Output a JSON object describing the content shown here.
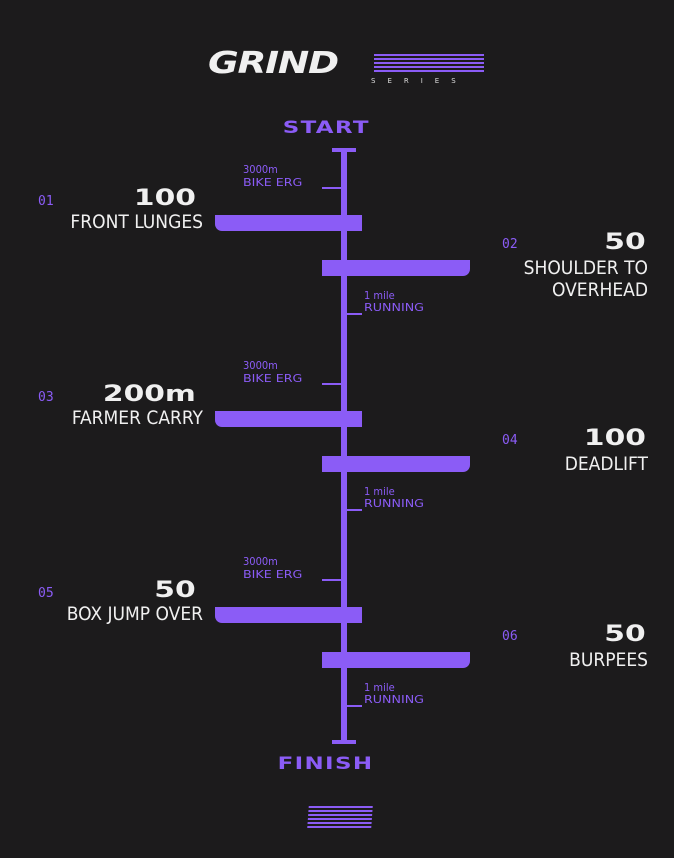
{
  "logo": {
    "word": "GRIND",
    "sub": "SERIES",
    "accent": "#8b5cf6"
  },
  "start_label": "START",
  "finish_label": "FINISH",
  "stations": [
    {
      "type": "bike",
      "distance": "3000m",
      "name": "BIKE ERG"
    },
    {
      "type": "run",
      "distance": "1 mile",
      "name": "RUNNING"
    }
  ],
  "exercises": [
    {
      "num": "01",
      "count": "100",
      "name": "FRONT LUNGES",
      "side": "left"
    },
    {
      "num": "02",
      "count": "50",
      "name": "SHOULDER TO\nOVERHEAD",
      "side": "right"
    },
    {
      "num": "03",
      "count": "200m",
      "name": "FARMER CARRY",
      "side": "left"
    },
    {
      "num": "04",
      "count": "100",
      "name": "DEADLIFT",
      "side": "right"
    },
    {
      "num": "05",
      "count": "50",
      "name": "BOX JUMP OVER",
      "side": "left"
    },
    {
      "num": "06",
      "count": "50",
      "name": "BURPEES",
      "side": "right"
    }
  ]
}
